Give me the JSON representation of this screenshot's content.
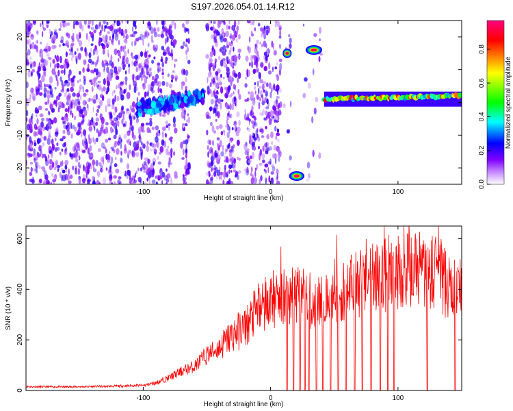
{
  "chart_data": [
    {
      "type": "heatmap",
      "title": "S197.2026.054.01.14.R12",
      "xlabel": "Height of straight line (km)",
      "ylabel": "Frequency (Hz)",
      "xlim": [
        -192,
        150
      ],
      "ylim": [
        -25,
        25
      ],
      "xticks": [
        -100,
        0,
        100
      ],
      "yticks": [
        -20,
        -10,
        0,
        10,
        20
      ],
      "colorbar": {
        "label": "Normalized spectral amplitude",
        "ticks": [
          0.0,
          0.2,
          0.4,
          0.6,
          0.8
        ],
        "range": [
          0,
          0.97
        ],
        "colors": [
          "#ffffff",
          "#8000ff",
          "#0000ff",
          "#00ffff",
          "#00ff00",
          "#ffff00",
          "#ff0000",
          "#ff0080"
        ]
      },
      "features": [
        {
          "name": "noise-speckle",
          "x": [
            -192,
            40
          ],
          "freq": [
            -25,
            25
          ],
          "amplitude": 0.1
        },
        {
          "name": "converging-track",
          "x": [
            -105,
            -52
          ],
          "freq": [
            -2,
            2
          ],
          "amplitude": 0.35
        },
        {
          "name": "blob-upper-1",
          "x": [
            10,
            16
          ],
          "freq": 15,
          "amplitude": 0.95
        },
        {
          "name": "blob-upper-2",
          "x": [
            28,
            40
          ],
          "freq": 16,
          "amplitude": 0.95
        },
        {
          "name": "blob-lower",
          "x": [
            15,
            26
          ],
          "freq": -22.5,
          "amplitude": 0.95
        },
        {
          "name": "steady-line",
          "x": [
            42,
            150
          ],
          "freq": [
            1,
            2
          ],
          "amplitude": 0.8
        }
      ]
    },
    {
      "type": "line",
      "xlabel": "Height of straight line (km)",
      "ylabel": "SNR (10 * v/v)",
      "xlim": [
        -192,
        150
      ],
      "ylim": [
        0,
        650
      ],
      "xticks": [
        -100,
        0,
        100
      ],
      "yticks": [
        0,
        200,
        400,
        600
      ],
      "series": [
        {
          "name": "SNR",
          "color": "#ff0000",
          "x": [
            -192,
            -160,
            -130,
            -100,
            -90,
            -80,
            -70,
            -60,
            -50,
            -40,
            -30,
            -20,
            -10,
            0,
            10,
            20,
            30,
            40,
            50,
            60,
            70,
            80,
            90,
            100,
            110,
            120,
            130,
            140,
            150
          ],
          "values": [
            15,
            14,
            16,
            20,
            30,
            50,
            75,
            95,
            140,
            170,
            220,
            250,
            320,
            360,
            380,
            370,
            360,
            350,
            370,
            400,
            420,
            440,
            460,
            470,
            480,
            470,
            460,
            410,
            380
          ]
        }
      ]
    }
  ]
}
